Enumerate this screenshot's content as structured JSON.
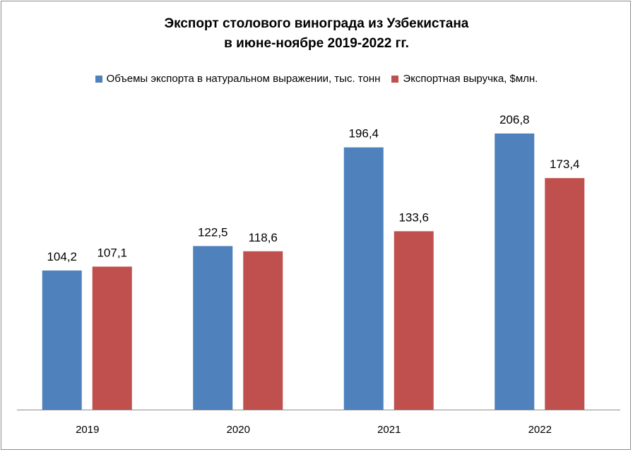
{
  "chart_data": {
    "type": "bar",
    "title_line1": "Экспорт столового винограда из Узбекистана",
    "title_line2": "в июне-ноябре 2019-2022 гг.",
    "categories": [
      "2019",
      "2020",
      "2021",
      "2022"
    ],
    "series": [
      {
        "name": "Объемы экспорта в натуральном выражении, тыс. тонн",
        "color": "#4f81bd",
        "values": [
          104.2,
          122.5,
          196.4,
          206.8
        ],
        "labels": [
          "104,2",
          "122,5",
          "196,4",
          "206,8"
        ]
      },
      {
        "name": "Экспортная выручка, $млн.",
        "color": "#c0504d",
        "values": [
          107.1,
          118.6,
          133.6,
          173.4
        ],
        "labels": [
          "107,1",
          "118,6",
          "133,6",
          "173,4"
        ]
      }
    ],
    "ylim": [
      0,
      210
    ],
    "grid": false,
    "y_axis_visible": false,
    "legend_position": "top"
  }
}
